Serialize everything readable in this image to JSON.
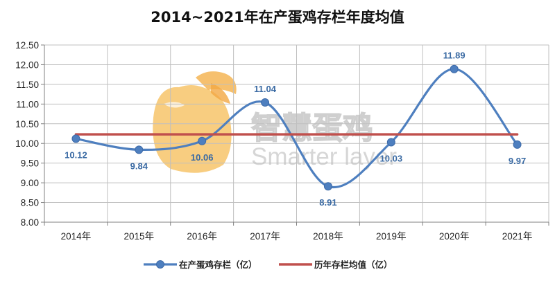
{
  "chart_data": {
    "type": "line",
    "title": "2014~2021年在产蛋鸡存栏年度均值",
    "categories": [
      "2014年",
      "2015年",
      "2016年",
      "2017年",
      "2018年",
      "2019年",
      "2020年",
      "2021年"
    ],
    "series": [
      {
        "name": "在产蛋鸡存栏（亿）",
        "values": [
          10.12,
          9.84,
          10.06,
          11.04,
          8.91,
          10.03,
          11.89,
          9.97
        ],
        "labels": [
          "10.12",
          "9.84",
          "10.06",
          "11.04",
          "8.91",
          "10.03",
          "11.89",
          "9.97"
        ],
        "color": "#4e7fbf",
        "smooth": true,
        "markers": true
      },
      {
        "name": "历年存栏均值（亿）",
        "values": [
          10.23,
          10.23,
          10.23,
          10.23,
          10.23,
          10.23,
          10.23,
          10.23
        ],
        "color": "#c0504d",
        "smooth": false,
        "markers": false
      }
    ],
    "ylim": [
      8.0,
      12.5
    ],
    "yticks": [
      "8.00",
      "8.50",
      "9.00",
      "9.50",
      "10.00",
      "10.50",
      "11.00",
      "11.50",
      "12.00",
      "12.50"
    ],
    "grid": true,
    "legend_position": "bottom",
    "xlabel": "",
    "ylabel": ""
  },
  "watermark": {
    "text_cn": "智慧蛋鸡",
    "text_en": "Smarter layer",
    "logo_color": "#f7c46a"
  }
}
